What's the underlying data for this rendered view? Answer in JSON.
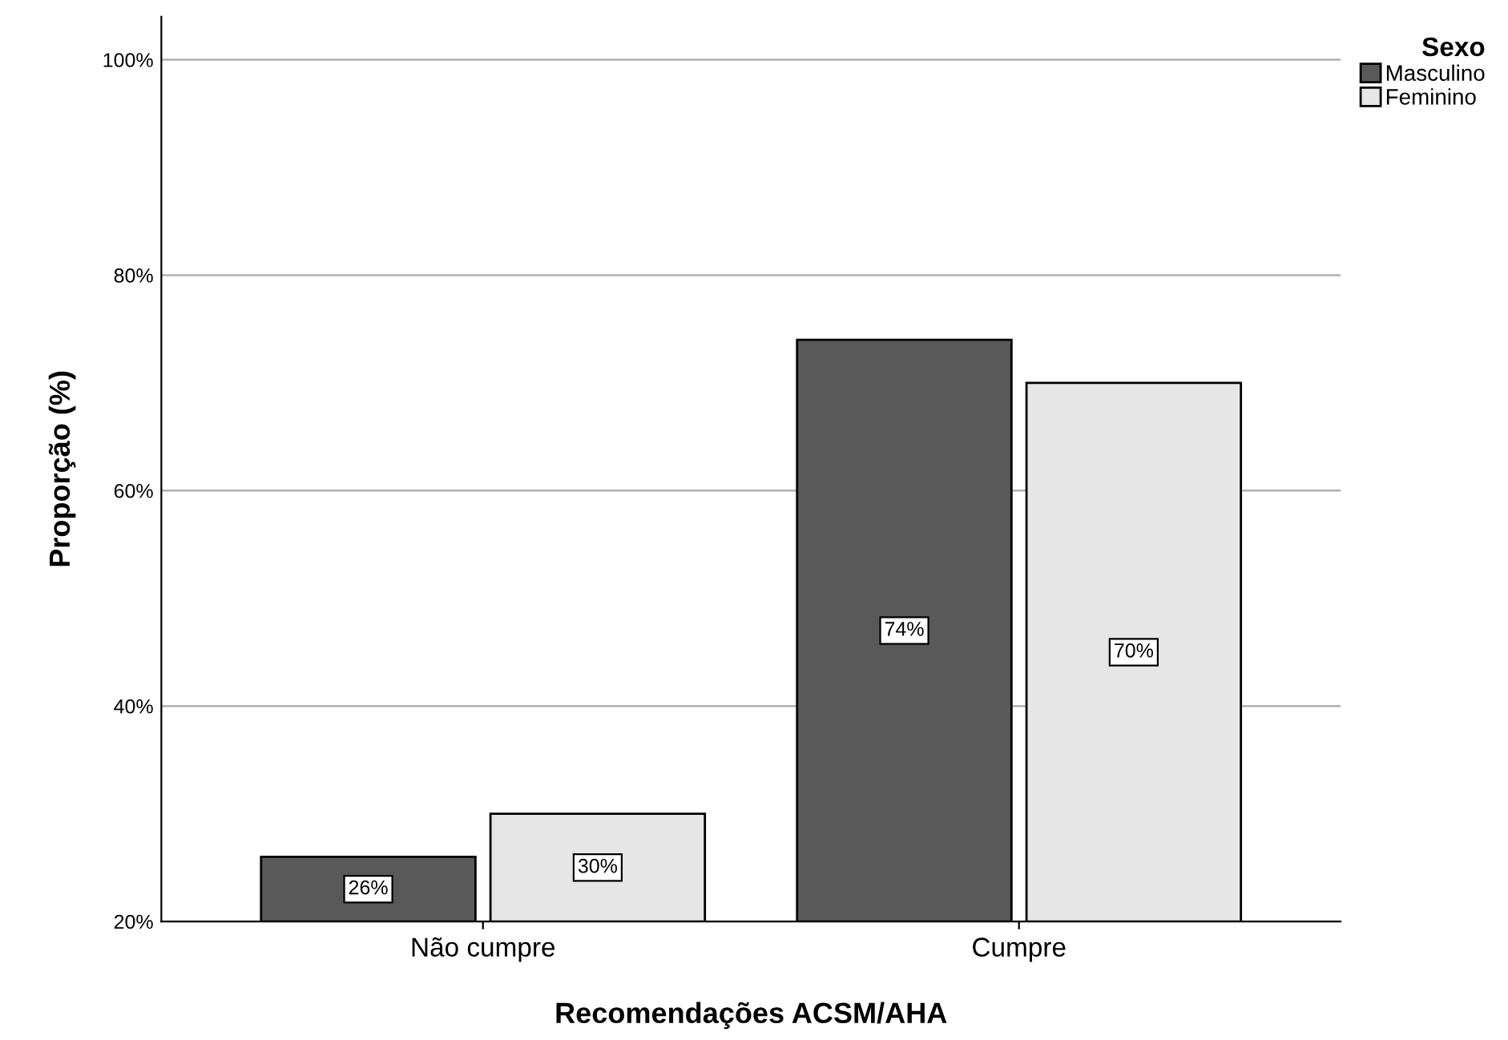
{
  "chart_data": {
    "type": "bar",
    "xlabel": "Recomendações ACSM/AHA",
    "ylabel": "Proporção (%)",
    "legend_title": "Sexo",
    "categories": [
      "Não cumpre",
      "Cumpre"
    ],
    "series": [
      {
        "name": "Masculino",
        "color": "#595959",
        "values": [
          26,
          74
        ],
        "value_labels": [
          "26%",
          "74%"
        ]
      },
      {
        "name": "Feminino",
        "color": "#e6e6e6",
        "values": [
          30,
          70
        ],
        "value_labels": [
          "30%",
          "70%"
        ]
      }
    ],
    "ylim": [
      20,
      104
    ],
    "yticks": [
      {
        "value": 20,
        "label": "20%"
      },
      {
        "value": 40,
        "label": "40%"
      },
      {
        "value": 60,
        "label": "60%"
      },
      {
        "value": 80,
        "label": "80%"
      },
      {
        "value": 100,
        "label": "100%"
      }
    ],
    "grid": "y",
    "legend": "top right"
  }
}
